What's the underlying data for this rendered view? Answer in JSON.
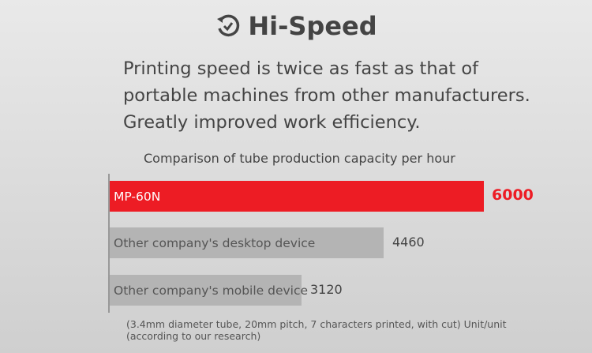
{
  "header": {
    "title": "Hi-Speed",
    "icon": "clock-refresh-icon"
  },
  "description": [
    "Printing speed is twice as fast as that of",
    "portable machines from other manufacturers.",
    "Greatly improved work efficiency."
  ],
  "chart_data": {
    "type": "bar",
    "orientation": "horizontal",
    "title": "Comparison of tube production capacity per hour",
    "categories": [
      "MP-60N",
      "Other company's desktop device",
      "Other company's mobile device"
    ],
    "values": [
      6000,
      4460,
      3120
    ],
    "value_labels": [
      "6000",
      "4460",
      "3120"
    ],
    "colors": [
      "#ed1c24",
      "#b4b4b4",
      "#b4b4b4"
    ],
    "xlim": [
      0,
      6000
    ],
    "grid": false,
    "note": [
      "(3.4mm diameter tube, 20mm pitch, 7 characters printed, with cut) Unit/unit",
      "(according to our research)"
    ]
  }
}
